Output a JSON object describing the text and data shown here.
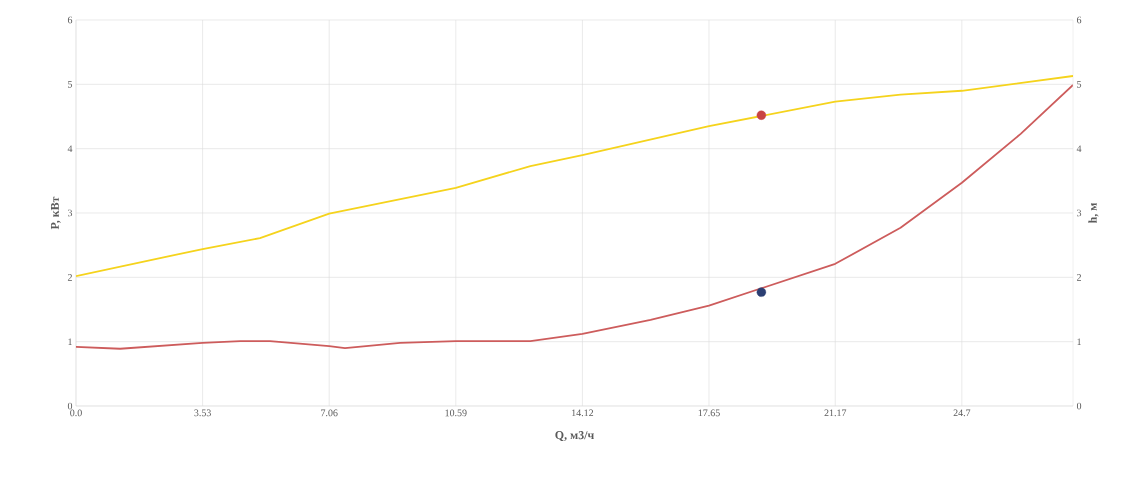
{
  "chart_data": {
    "type": "line",
    "xlabel": "Q, м3/ч",
    "ylabel": "P, кВт",
    "y2label": "h, м",
    "xlim": [
      0,
      27.8
    ],
    "xticks": [
      {
        "value": 0,
        "label": "0.0"
      },
      3.53,
      7.06,
      10.59,
      14.12,
      17.65,
      21.17,
      24.7
    ],
    "ylim": [
      0,
      6
    ],
    "yticks": [
      0,
      1,
      2,
      3,
      4,
      5,
      6
    ],
    "y2lim": [
      0,
      6
    ],
    "y2ticks": [
      0,
      1,
      2,
      3,
      4,
      5,
      6
    ],
    "grid": true,
    "series": [
      {
        "color": "#cd5c5c",
        "x": [
          0,
          1.23,
          3.53,
          4.58,
          5.41,
          7.06,
          7.5,
          9.04,
          10.59,
          12.67,
          14.12,
          16.02,
          17.65,
          21.17,
          22.99,
          24.7,
          26.34,
          27.8
        ],
        "values": [
          0.92,
          0.89,
          0.98,
          1.01,
          1.01,
          0.93,
          0.9,
          0.98,
          1.01,
          1.01,
          1.12,
          1.34,
          1.56,
          2.21,
          2.77,
          3.47,
          4.23,
          4.99
        ]
      },
      {
        "color": "#f5d31c",
        "axis": "y2",
        "x": [
          0,
          3.53,
          5.13,
          7.06,
          10.59,
          12.67,
          14.12,
          17.65,
          21.17,
          22.99,
          24.7,
          27.8
        ],
        "values": [
          2.02,
          2.44,
          2.61,
          2.99,
          3.39,
          3.73,
          3.9,
          4.35,
          4.73,
          4.84,
          4.9,
          5.13
        ]
      },
      {
        "type": "scatter",
        "marker": "circle",
        "color": "#c94444",
        "axis": "y2",
        "x": [
          19.11
        ],
        "values": [
          4.52
        ]
      },
      {
        "type": "scatter",
        "marker": "circle",
        "color": "#2b3f73",
        "x": [
          19.11
        ],
        "values": [
          1.77
        ]
      }
    ]
  }
}
